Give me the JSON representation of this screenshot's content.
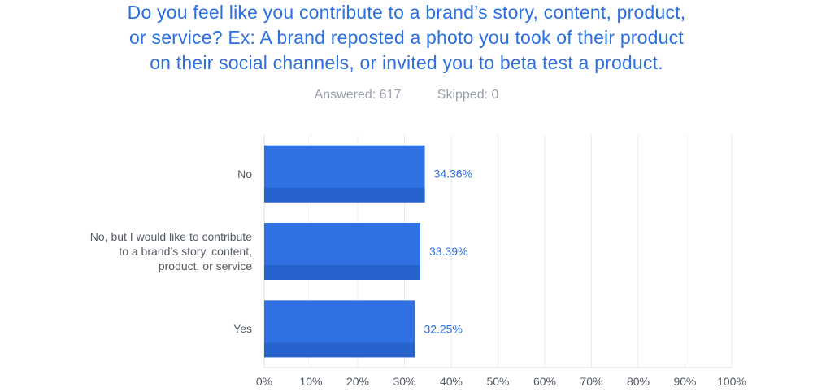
{
  "question": {
    "title_lines": [
      "Do you feel like you contribute to a brand’s story, content, product,",
      "or service? Ex: A brand reposted a photo you took of their product",
      "on their social channels, or invited you to beta test a product."
    ]
  },
  "stats": {
    "answered": "Answered: 617",
    "skipped": "Skipped: 0"
  },
  "colors": {
    "bar": "#2f71e3",
    "bar_shade": "#2763cd",
    "title": "#2b6fe0",
    "value_label": "#2b6fe0",
    "grid": "#e9ebee"
  },
  "chart_data": {
    "type": "bar",
    "orientation": "horizontal",
    "categories": [
      [
        "No"
      ],
      [
        "No, but I would like to contribute",
        "to a brand’s story, content,",
        "product, or service"
      ],
      [
        "Yes"
      ]
    ],
    "values": [
      34.36,
      33.39,
      32.25
    ],
    "value_labels": [
      "34.36%",
      "33.39%",
      "32.25%"
    ],
    "xlim": [
      0,
      100
    ],
    "xticks": [
      0,
      10,
      20,
      30,
      40,
      50,
      60,
      70,
      80,
      90,
      100
    ],
    "xtick_labels": [
      "0%",
      "10%",
      "20%",
      "30%",
      "40%",
      "50%",
      "60%",
      "70%",
      "80%",
      "90%",
      "100%"
    ],
    "grid": true
  }
}
